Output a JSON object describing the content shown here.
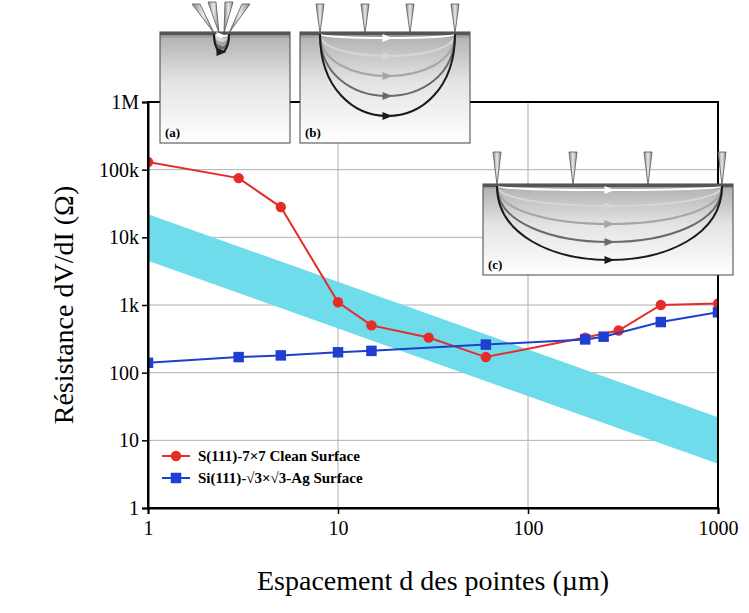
{
  "chart_data": {
    "type": "line",
    "x_label": "Espacement d des pointes (µm)",
    "y_label": "Résistance dV/dI (Ω)",
    "log": true,
    "grid": true,
    "legend": "lower left",
    "xlim": [
      1,
      1000
    ],
    "ylim": [
      1,
      1000000
    ],
    "xticks": [
      1,
      10,
      100,
      1000
    ],
    "yticks": [
      1,
      10,
      100,
      {
        "value": 1000,
        "label": "1k"
      },
      {
        "value": 10000,
        "label": "10k"
      },
      {
        "value": 100000,
        "label": "100k"
      },
      {
        "value": 1000000,
        "label": "1M"
      }
    ],
    "series": [
      {
        "name": "S(111)-7×7 Clean Surface",
        "color": "#e52d27",
        "marker": "circle",
        "line_style": "solid",
        "x": [
          1,
          3,
          5,
          10,
          15,
          30,
          60,
          200,
          300,
          500,
          1000
        ],
        "values": [
          130000,
          75000,
          28000,
          1100,
          500,
          330,
          170,
          330,
          420,
          1000,
          1050
        ]
      },
      {
        "name": "Si(111)-√3×√3-Ag Surface",
        "color": "#1f3fd1",
        "marker": "square",
        "line_style": "solid",
        "x": [
          1,
          3,
          5,
          10,
          15,
          60,
          200,
          250,
          500,
          1000
        ],
        "values": [
          140,
          170,
          180,
          200,
          210,
          260,
          310,
          340,
          560,
          780
        ]
      }
    ],
    "band": {
      "type": "area",
      "color": "#6fdcec",
      "x": [
        1,
        1000
      ],
      "lower": [
        4500,
        4.5
      ],
      "upper": [
        22000,
        22
      ]
    },
    "annotations": [
      "(a)",
      "(b)",
      "(c)"
    ]
  }
}
